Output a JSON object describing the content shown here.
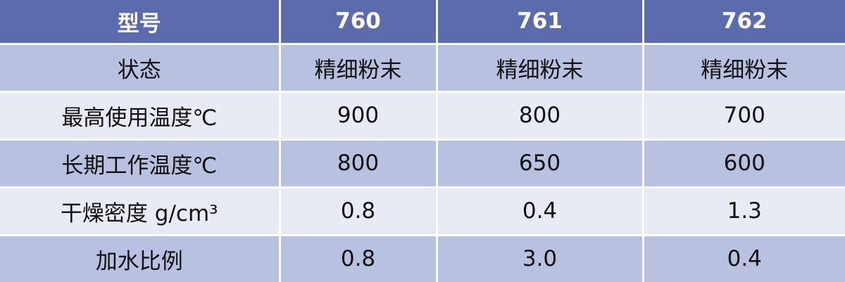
{
  "table": {
    "header": [
      "型号",
      "760",
      "761",
      "762"
    ],
    "rows": [
      [
        "状态",
        "精细粉末",
        "精细粉末",
        "精细粉末"
      ],
      [
        "最高使用温度℃",
        "900",
        "800",
        "700"
      ],
      [
        "长期工作温度℃",
        "800",
        "650",
        "600"
      ],
      [
        "干燥密度 g/cm³",
        "0.8",
        "0.4",
        "1.3"
      ],
      [
        "加水比例",
        "0.8",
        "3.0",
        "0.4"
      ]
    ]
  },
  "colors": {
    "header_bg": "#5b6bae",
    "row_dark": "#b8c1e0",
    "row_light": "#e8eaf4"
  }
}
